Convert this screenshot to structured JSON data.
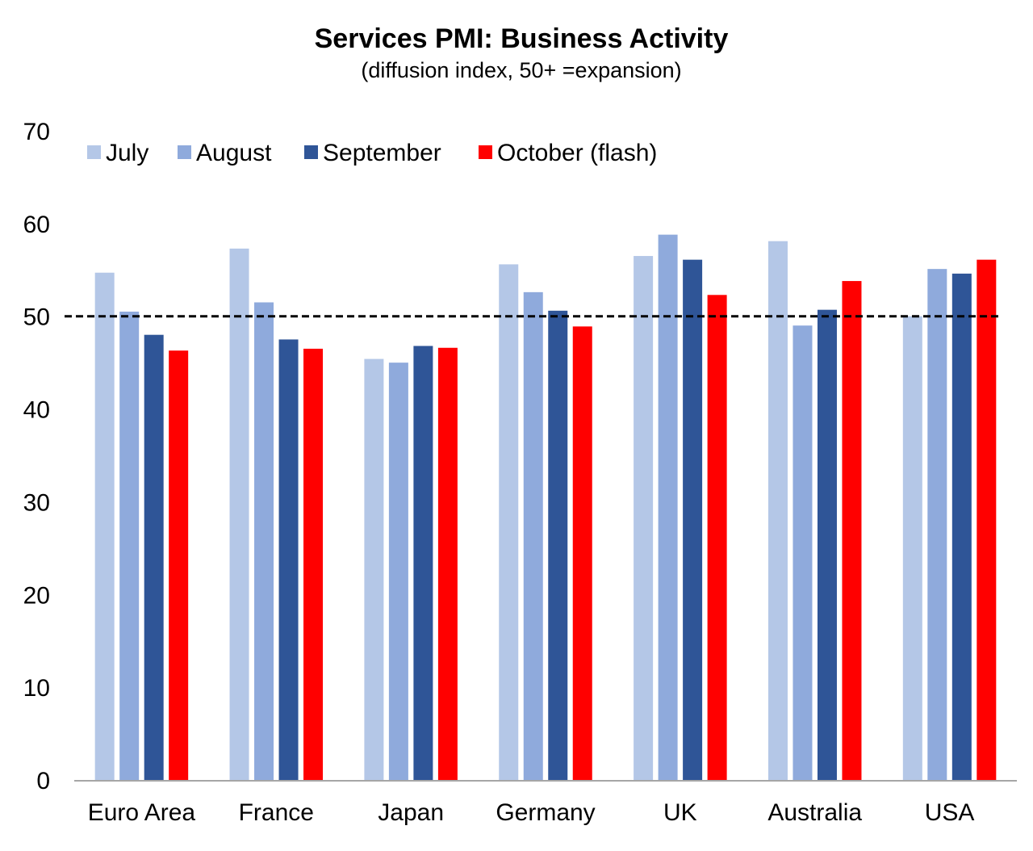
{
  "chart_data": {
    "type": "bar",
    "title": "Services PMI: Business Activity",
    "subtitle": "(diffusion index, 50+ =expansion)",
    "categories": [
      "Euro Area",
      "France",
      "Japan",
      "Germany",
      "UK",
      "Australia",
      "USA"
    ],
    "series": [
      {
        "name": "July",
        "color": "#b4c7e7",
        "values": [
          54.7,
          57.3,
          45.4,
          55.6,
          56.5,
          58.1,
          50.0
        ]
      },
      {
        "name": "August",
        "color": "#8faadc",
        "values": [
          50.5,
          51.5,
          45.0,
          52.6,
          58.8,
          49.0,
          55.1
        ]
      },
      {
        "name": "September",
        "color": "#2f5597",
        "values": [
          48.0,
          47.5,
          46.8,
          50.6,
          56.1,
          50.7,
          54.6
        ]
      },
      {
        "name": "October (flash)",
        "color": "#ff0000",
        "values": [
          46.3,
          46.5,
          46.6,
          48.9,
          52.3,
          53.8,
          56.1
        ]
      }
    ],
    "ylim": [
      0,
      70
    ],
    "yticks": [
      0,
      10,
      20,
      30,
      40,
      50,
      60,
      70
    ],
    "reference_line": {
      "value": 50,
      "style": "dashed",
      "color": "#000000"
    },
    "grid": false,
    "legend_position": "top-left"
  }
}
